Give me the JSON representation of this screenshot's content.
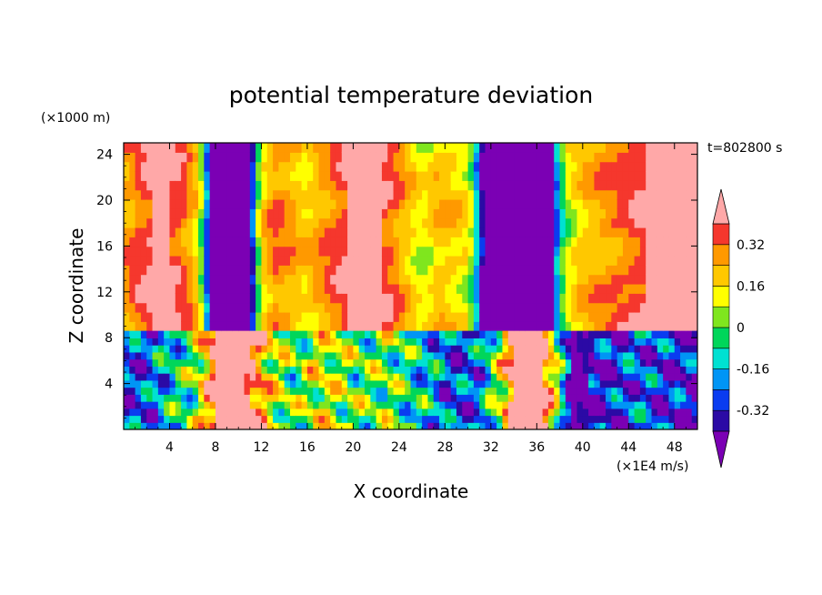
{
  "chart_data": {
    "type": "heatmap",
    "title": "potential temperature deviation",
    "xlabel": "X coordinate",
    "ylabel": "Z coordinate",
    "x_units": "(×1E4 m/s)",
    "y_units": "(×1000 m)",
    "time_label": "t=802800 s",
    "xlim": [
      0,
      50
    ],
    "ylim": [
      0,
      25
    ],
    "x_ticks": [
      4,
      8,
      12,
      16,
      20,
      24,
      28,
      32,
      36,
      40,
      44,
      48
    ],
    "y_ticks": [
      4,
      8,
      12,
      16,
      20,
      24
    ],
    "colorbar": {
      "levels": [
        -0.4,
        -0.32,
        -0.24,
        -0.16,
        -0.08,
        0,
        0.08,
        0.16,
        0.24,
        0.32,
        0.4
      ],
      "tick_labels": [
        "0.32",
        "0.16",
        "0",
        "-0.16",
        "-0.32"
      ],
      "tick_values": [
        0.32,
        0.16,
        0,
        -0.16,
        -0.32
      ],
      "colors": [
        "#7b00b4",
        "#2b0aa5",
        "#0a3cf0",
        "#0095f5",
        "#00e1d2",
        "#00d65a",
        "#7fe61e",
        "#ffff00",
        "#ffc800",
        "#ff9900",
        "#f5372d",
        "#ffa8a8"
      ],
      "extend": "both"
    },
    "interface_z": 8.6,
    "upper_columns": [
      {
        "x": 0.0,
        "v": 0.24
      },
      {
        "x": 1.5,
        "v": 0.36
      },
      {
        "x": 3.0,
        "v": 0.44
      },
      {
        "x": 4.5,
        "v": 0.38
      },
      {
        "x": 5.5,
        "v": 0.3
      },
      {
        "x": 6.3,
        "v": 0.18
      },
      {
        "x": 6.8,
        "v": 0.02
      },
      {
        "x": 7.2,
        "v": -0.22
      },
      {
        "x": 7.6,
        "v": -0.44
      },
      {
        "x": 11.0,
        "v": -0.44
      },
      {
        "x": 11.4,
        "v": -0.2
      },
      {
        "x": 11.8,
        "v": 0.05
      },
      {
        "x": 12.3,
        "v": 0.2
      },
      {
        "x": 13.2,
        "v": 0.3
      },
      {
        "x": 14.5,
        "v": 0.26
      },
      {
        "x": 15.8,
        "v": 0.18
      },
      {
        "x": 17.0,
        "v": 0.25
      },
      {
        "x": 18.5,
        "v": 0.34
      },
      {
        "x": 20.0,
        "v": 0.44
      },
      {
        "x": 22.0,
        "v": 0.42
      },
      {
        "x": 23.5,
        "v": 0.32
      },
      {
        "x": 24.8,
        "v": 0.2
      },
      {
        "x": 26.0,
        "v": 0.1
      },
      {
        "x": 27.5,
        "v": 0.22
      },
      {
        "x": 28.8,
        "v": 0.18
      },
      {
        "x": 29.8,
        "v": 0.14
      },
      {
        "x": 30.5,
        "v": 0.0
      },
      {
        "x": 31.0,
        "v": -0.3
      },
      {
        "x": 31.4,
        "v": -0.44
      },
      {
        "x": 37.2,
        "v": -0.44
      },
      {
        "x": 37.6,
        "v": -0.26
      },
      {
        "x": 38.0,
        "v": -0.12
      },
      {
        "x": 38.4,
        "v": 0.02
      },
      {
        "x": 39.0,
        "v": 0.12
      },
      {
        "x": 40.0,
        "v": 0.2
      },
      {
        "x": 41.5,
        "v": 0.26
      },
      {
        "x": 43.5,
        "v": 0.32
      },
      {
        "x": 45.0,
        "v": 0.38
      },
      {
        "x": 46.5,
        "v": 0.44
      },
      {
        "x": 48.0,
        "v": 0.42
      },
      {
        "x": 50.0,
        "v": 0.4
      }
    ],
    "lower_columns": [
      {
        "x": 0.0,
        "v": -0.3
      },
      {
        "x": 2.0,
        "v": -0.26
      },
      {
        "x": 4.0,
        "v": -0.12
      },
      {
        "x": 6.0,
        "v": -0.02
      },
      {
        "x": 7.5,
        "v": 0.3
      },
      {
        "x": 8.0,
        "v": 0.44
      },
      {
        "x": 10.5,
        "v": 0.44
      },
      {
        "x": 11.5,
        "v": 0.34
      },
      {
        "x": 13.0,
        "v": 0.1
      },
      {
        "x": 15.0,
        "v": -0.02
      },
      {
        "x": 17.0,
        "v": 0.12
      },
      {
        "x": 19.0,
        "v": 0.06
      },
      {
        "x": 21.0,
        "v": -0.02
      },
      {
        "x": 23.0,
        "v": 0.02
      },
      {
        "x": 25.0,
        "v": -0.08
      },
      {
        "x": 27.0,
        "v": -0.16
      },
      {
        "x": 29.0,
        "v": -0.3
      },
      {
        "x": 31.0,
        "v": -0.24
      },
      {
        "x": 33.0,
        "v": 0.14
      },
      {
        "x": 34.0,
        "v": 0.44
      },
      {
        "x": 36.5,
        "v": 0.44
      },
      {
        "x": 38.0,
        "v": -0.02
      },
      {
        "x": 39.0,
        "v": -0.44
      },
      {
        "x": 41.0,
        "v": -0.38
      },
      {
        "x": 43.0,
        "v": -0.3
      },
      {
        "x": 45.0,
        "v": -0.24
      },
      {
        "x": 47.0,
        "v": -0.32
      },
      {
        "x": 50.0,
        "v": -0.36
      }
    ]
  }
}
